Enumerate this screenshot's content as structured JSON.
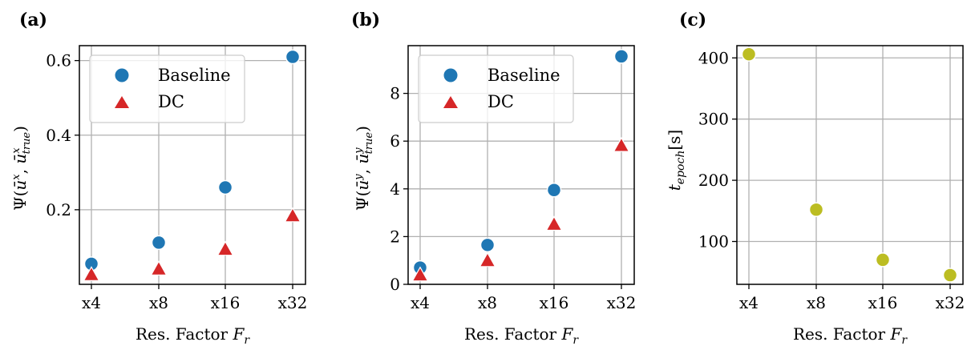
{
  "colors": {
    "baseline": "#1f77b4",
    "dc": "#d62728",
    "timing": "#bcbd22"
  },
  "chart_data": [
    {
      "panel_label": "(a)",
      "type": "scatter",
      "categories": [
        "x4",
        "x8",
        "x16",
        "x32"
      ],
      "xlabel_text": "Res. Factor ",
      "xlabel_var": "F",
      "xlabel_sub": "r",
      "ylabel": "Ψ(ū^x, ū^x_true)",
      "ylabel_text": "Ψ(",
      "ylabel_u1": "ū",
      "ylabel_sup1": "x",
      "ylabel_comma": ", ",
      "ylabel_u2": "ū",
      "ylabel_sup2": "x",
      "ylabel_sub2": "true",
      "ylabel_close": ")",
      "ylim": [
        0.0,
        0.64
      ],
      "yticks": [
        0.2,
        0.4,
        0.6
      ],
      "yticklabels": [
        "0.2",
        "0.4",
        "0.6"
      ],
      "legend_position": "upper-left",
      "grid": true,
      "series": [
        {
          "name": "Baseline",
          "marker": "circle",
          "color": "#1f77b4",
          "values": [
            0.055,
            0.112,
            0.26,
            0.61
          ]
        },
        {
          "name": "DC",
          "marker": "triangle",
          "color": "#d62728",
          "values": [
            0.025,
            0.04,
            0.093,
            0.183
          ]
        }
      ]
    },
    {
      "panel_label": "(b)",
      "type": "scatter",
      "categories": [
        "x4",
        "x8",
        "x16",
        "x32"
      ],
      "xlabel_text": "Res. Factor ",
      "xlabel_var": "F",
      "xlabel_sub": "r",
      "ylabel": "Ψ(ū^y, ū^y_true)",
      "ylabel_text": "Ψ(",
      "ylabel_u1": "ū",
      "ylabel_sup1": "y",
      "ylabel_comma": ", ",
      "ylabel_u2": "ū",
      "ylabel_sup2": "y",
      "ylabel_sub2": "true",
      "ylabel_close": ")",
      "ylim": [
        0.0,
        10.0
      ],
      "yticks": [
        0,
        2,
        4,
        6,
        8
      ],
      "yticklabels": [
        "0",
        "2",
        "4",
        "6",
        "8"
      ],
      "legend_position": "upper-left",
      "grid": true,
      "series": [
        {
          "name": "Baseline",
          "marker": "circle",
          "color": "#1f77b4",
          "values": [
            0.7,
            1.65,
            3.95,
            9.55
          ]
        },
        {
          "name": "DC",
          "marker": "triangle",
          "color": "#d62728",
          "values": [
            0.38,
            0.98,
            2.5,
            5.8
          ]
        }
      ]
    },
    {
      "panel_label": "(c)",
      "type": "scatter",
      "categories": [
        "x4",
        "x8",
        "x16",
        "x32"
      ],
      "xlabel_text": "Res. Factor ",
      "xlabel_var": "F",
      "xlabel_sub": "r",
      "ylabel": "t_epoch[s]",
      "ylabel_var": "t",
      "ylabel_sub": "epoch",
      "ylabel_unit": "[s]",
      "ylim": [
        30,
        420
      ],
      "yticks": [
        100,
        200,
        300,
        400
      ],
      "yticklabels": [
        "100",
        "200",
        "300",
        "400"
      ],
      "grid": true,
      "series": [
        {
          "marker": "circle",
          "color": "#bcbd22",
          "values": [
            406,
            152,
            70,
            45
          ]
        }
      ]
    }
  ]
}
